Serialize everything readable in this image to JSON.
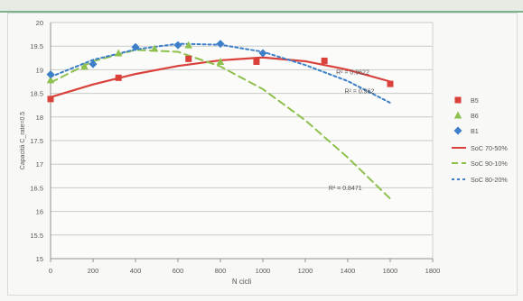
{
  "chart_data": {
    "type": "scatter",
    "title": "",
    "xlabel": "N cicli",
    "ylabel": "Capacità C_rate=0.5",
    "xlim": [
      0,
      1800
    ],
    "ylim": [
      15,
      20
    ],
    "x_ticks": [
      "0",
      "200",
      "400",
      "600",
      "800",
      "1000",
      "1200",
      "1400",
      "1600",
      "1800"
    ],
    "y_ticks": [
      "15",
      "15.5",
      "16",
      "16.5",
      "17",
      "17.5",
      "18",
      "18.5",
      "19",
      "19.5",
      "20"
    ],
    "grid": true,
    "legend_position": "right",
    "series": [
      {
        "name": "B5",
        "kind": "scatter",
        "marker": "square",
        "color": "#d9413a",
        "points": [
          [
            0,
            18.38
          ],
          [
            320,
            18.83
          ],
          [
            650,
            19.23
          ],
          [
            970,
            19.17
          ],
          [
            1290,
            19.19
          ],
          [
            1600,
            18.7
          ]
        ]
      },
      {
        "name": "B6",
        "kind": "scatter",
        "marker": "triangle",
        "color": "#8ec04d",
        "points": [
          [
            0,
            18.78
          ],
          [
            160,
            19.07
          ],
          [
            320,
            19.35
          ],
          [
            490,
            19.45
          ],
          [
            650,
            19.52
          ],
          [
            800,
            19.17
          ]
        ]
      },
      {
        "name": "B1",
        "kind": "scatter",
        "marker": "diamond",
        "color": "#3c7fc8",
        "points": [
          [
            0,
            18.9
          ],
          [
            200,
            19.12
          ],
          [
            400,
            19.48
          ],
          [
            600,
            19.52
          ],
          [
            800,
            19.55
          ],
          [
            1000,
            19.35
          ]
        ]
      },
      {
        "name": "SoC 70-50%",
        "kind": "line",
        "dash": "solid",
        "color": "#d9413a",
        "points": [
          [
            0,
            18.42
          ],
          [
            200,
            18.69
          ],
          [
            400,
            18.91
          ],
          [
            600,
            19.08
          ],
          [
            800,
            19.2
          ],
          [
            1000,
            19.26
          ],
          [
            1200,
            19.18
          ],
          [
            1400,
            19.0
          ],
          [
            1600,
            18.75
          ]
        ]
      },
      {
        "name": "SoC 90-10%",
        "kind": "line",
        "dash": "long",
        "color": "#8ec04d",
        "points": [
          [
            0,
            18.73
          ],
          [
            200,
            19.18
          ],
          [
            400,
            19.42
          ],
          [
            600,
            19.38
          ],
          [
            800,
            19.07
          ],
          [
            1000,
            18.59
          ],
          [
            1200,
            17.93
          ],
          [
            1400,
            17.14
          ],
          [
            1600,
            16.27
          ]
        ]
      },
      {
        "name": "SoC 80-20%",
        "kind": "line",
        "dash": "short",
        "color": "#3c7fc8",
        "points": [
          [
            0,
            18.85
          ],
          [
            200,
            19.21
          ],
          [
            400,
            19.43
          ],
          [
            600,
            19.55
          ],
          [
            800,
            19.53
          ],
          [
            1000,
            19.38
          ],
          [
            1200,
            19.1
          ],
          [
            1400,
            18.76
          ],
          [
            1600,
            18.3
          ]
        ]
      }
    ],
    "annotations": [
      {
        "text": "R² = 0.9622",
        "x": 1345,
        "y": 18.9
      },
      {
        "text": "R² = 0.962",
        "x": 1385,
        "y": 18.5
      },
      {
        "text": "R² = 0.8471",
        "x": 1310,
        "y": 16.45
      }
    ]
  }
}
